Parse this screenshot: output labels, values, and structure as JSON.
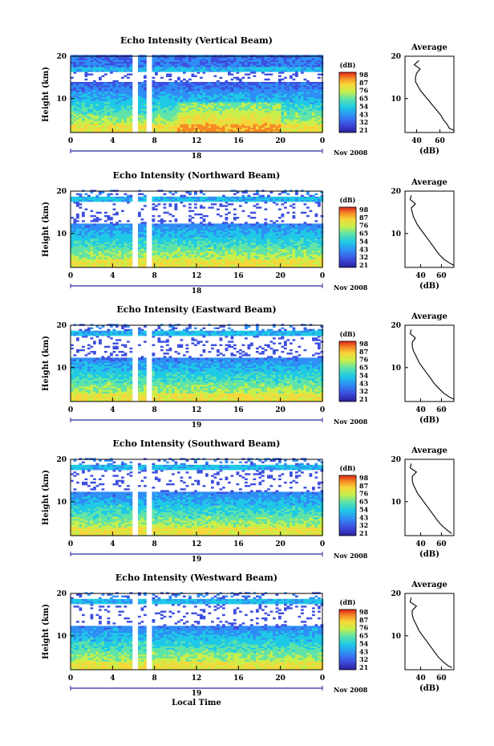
{
  "footer_label": "Local Time",
  "panels": [
    {
      "title": "Echo Intensity (Vertical Beam)",
      "ylabel": "Height (km)",
      "date_day": "18",
      "date_month": "Nov 2008",
      "colorbar_unit": "(dB)",
      "avg_title": "Average",
      "avg_xlabel": "(dB)"
    },
    {
      "title": "Echo Intensity (Northward Beam)",
      "ylabel": "Height (km)",
      "date_day": "18",
      "date_month": "Nov 2008",
      "colorbar_unit": "(dB)",
      "avg_title": "Average",
      "avg_xlabel": "(dB)"
    },
    {
      "title": "Echo Intensity (Eastward Beam)",
      "ylabel": "Height (km)",
      "date_day": "19",
      "date_month": "Nov 2008",
      "colorbar_unit": "(dB)",
      "avg_title": "Average",
      "avg_xlabel": "(dB)"
    },
    {
      "title": "Echo Intensity (Southward Beam)",
      "ylabel": "Height (km)",
      "date_day": "19",
      "date_month": "Nov 2008",
      "colorbar_unit": "(dB)",
      "avg_title": "Average",
      "avg_xlabel": "(dB)"
    },
    {
      "title": "Echo Intensity (Westward Beam)",
      "ylabel": "Height (km)",
      "date_day": "19",
      "date_month": "Nov 2008",
      "colorbar_unit": "(dB)",
      "avg_title": "Average",
      "avg_xlabel": "(dB)"
    }
  ],
  "chart_data": [
    {
      "type": "heatmap",
      "title": "Echo Intensity (Vertical Beam)",
      "xlabel": "Local Time",
      "ylabel": "Height (km)",
      "x_ticks": [
        "0",
        "4",
        "8",
        "12",
        "16",
        "20",
        "0"
      ],
      "xlim": [
        0,
        24
      ],
      "y_ticks": [
        "10",
        "20"
      ],
      "ylim": [
        2,
        20
      ],
      "colorbar_label": "(dB)",
      "colorbar_ticks": [
        "98",
        "87",
        "76",
        "65",
        "54",
        "43",
        "32",
        "21"
      ],
      "data_gaps_hours": [
        [
          5.8,
          6.3
        ],
        [
          7.2,
          7.5
        ]
      ],
      "average_profile": {
        "title": "Average",
        "xlabel": "(dB)",
        "x_ticks": [
          "40",
          "60"
        ],
        "xlim": [
          30,
          72
        ],
        "ylim": [
          2,
          20
        ],
        "heights_km": [
          2.5,
          3,
          4,
          5,
          6,
          7,
          8,
          9,
          10,
          11,
          12,
          13,
          14,
          15,
          16,
          17,
          18,
          19
        ],
        "values_db": [
          72,
          68,
          66,
          63,
          61,
          58,
          55,
          52,
          49,
          46,
          43,
          41,
          39,
          39,
          40,
          43,
          38,
          42
        ]
      }
    },
    {
      "type": "heatmap",
      "title": "Echo Intensity (Northward Beam)",
      "xlabel": "Local Time",
      "ylabel": "Height (km)",
      "x_ticks": [
        "0",
        "4",
        "8",
        "12",
        "16",
        "20",
        "0"
      ],
      "xlim": [
        0,
        24
      ],
      "y_ticks": [
        "10",
        "20"
      ],
      "ylim": [
        2,
        20
      ],
      "colorbar_label": "(dB)",
      "colorbar_ticks": [
        "98",
        "87",
        "76",
        "65",
        "54",
        "43",
        "32",
        "21"
      ],
      "data_gaps_hours": [
        [
          5.8,
          6.3
        ],
        [
          7.2,
          7.5
        ]
      ],
      "average_profile": {
        "title": "Average",
        "xlabel": "(dB)",
        "x_ticks": [
          "40",
          "60"
        ],
        "xlim": [
          25,
          72
        ],
        "ylim": [
          2,
          20
        ],
        "heights_km": [
          2.5,
          3,
          4,
          5,
          6,
          7,
          8,
          9,
          10,
          11,
          12,
          13,
          14,
          15,
          16,
          17,
          18,
          19
        ],
        "values_db": [
          72,
          68,
          62,
          58,
          55,
          52,
          49,
          46,
          43,
          40,
          37,
          35,
          33,
          32,
          31,
          35,
          30,
          31
        ]
      }
    },
    {
      "type": "heatmap",
      "title": "Echo Intensity (Eastward Beam)",
      "xlabel": "Local Time",
      "ylabel": "Height (km)",
      "x_ticks": [
        "0",
        "4",
        "8",
        "12",
        "16",
        "20",
        "0"
      ],
      "xlim": [
        0,
        24
      ],
      "y_ticks": [
        "10",
        "20"
      ],
      "ylim": [
        2,
        20
      ],
      "colorbar_label": "(dB)",
      "colorbar_ticks": [
        "98",
        "87",
        "76",
        "65",
        "54",
        "43",
        "32",
        "21"
      ],
      "data_gaps_hours": [
        [
          5.8,
          6.3
        ],
        [
          7.2,
          7.5
        ]
      ],
      "average_profile": {
        "title": "Average",
        "xlabel": "(dB)",
        "x_ticks": [
          "40",
          "60"
        ],
        "xlim": [
          25,
          72
        ],
        "ylim": [
          2,
          20
        ],
        "heights_km": [
          2.5,
          3,
          4,
          5,
          6,
          7,
          8,
          9,
          10,
          11,
          12,
          13,
          14,
          15,
          16,
          17,
          18,
          19
        ],
        "values_db": [
          72,
          68,
          62,
          58,
          54,
          51,
          48,
          45,
          42,
          39,
          37,
          35,
          33,
          32,
          32,
          35,
          30,
          31
        ]
      }
    },
    {
      "type": "heatmap",
      "title": "Echo Intensity (Southward Beam)",
      "xlabel": "Local Time",
      "ylabel": "Height (km)",
      "x_ticks": [
        "0",
        "4",
        "8",
        "12",
        "16",
        "20",
        "0"
      ],
      "xlim": [
        0,
        24
      ],
      "y_ticks": [
        "10",
        "20"
      ],
      "ylim": [
        2,
        20
      ],
      "colorbar_label": "(dB)",
      "colorbar_ticks": [
        "98",
        "87",
        "76",
        "65",
        "54",
        "43",
        "32",
        "21"
      ],
      "data_gaps_hours": [
        [
          5.8,
          6.3
        ],
        [
          7.2,
          7.5
        ]
      ],
      "average_profile": {
        "title": "Average",
        "xlabel": "(dB)",
        "x_ticks": [
          "40",
          "60"
        ],
        "xlim": [
          25,
          72
        ],
        "ylim": [
          2,
          20
        ],
        "heights_km": [
          2.5,
          3,
          4,
          5,
          6,
          7,
          8,
          9,
          10,
          11,
          12,
          13,
          14,
          15,
          16,
          17,
          18,
          19
        ],
        "values_db": [
          70,
          67,
          62,
          58,
          55,
          52,
          49,
          46,
          43,
          40,
          37,
          35,
          33,
          32,
          32,
          36,
          30,
          31
        ]
      }
    },
    {
      "type": "heatmap",
      "title": "Echo Intensity (Westward Beam)",
      "xlabel": "Local Time",
      "ylabel": "Height (km)",
      "x_ticks": [
        "0",
        "4",
        "8",
        "12",
        "16",
        "20",
        "0"
      ],
      "xlim": [
        0,
        24
      ],
      "y_ticks": [
        "10",
        "20"
      ],
      "ylim": [
        2,
        20
      ],
      "colorbar_label": "(dB)",
      "colorbar_ticks": [
        "98",
        "87",
        "76",
        "65",
        "54",
        "43",
        "32",
        "21"
      ],
      "data_gaps_hours": [
        [
          5.8,
          6.3
        ],
        [
          7.2,
          7.5
        ]
      ],
      "average_profile": {
        "title": "Average",
        "xlabel": "(dB)",
        "x_ticks": [
          "40",
          "60"
        ],
        "xlim": [
          25,
          72
        ],
        "ylim": [
          2,
          20
        ],
        "heights_km": [
          2.5,
          3,
          4,
          5,
          6,
          7,
          8,
          9,
          10,
          11,
          12,
          13,
          14,
          15,
          16,
          17,
          18,
          19
        ],
        "values_db": [
          70,
          66,
          61,
          57,
          54,
          51,
          48,
          45,
          42,
          39,
          37,
          35,
          33,
          32,
          32,
          36,
          30,
          31
        ]
      }
    }
  ]
}
